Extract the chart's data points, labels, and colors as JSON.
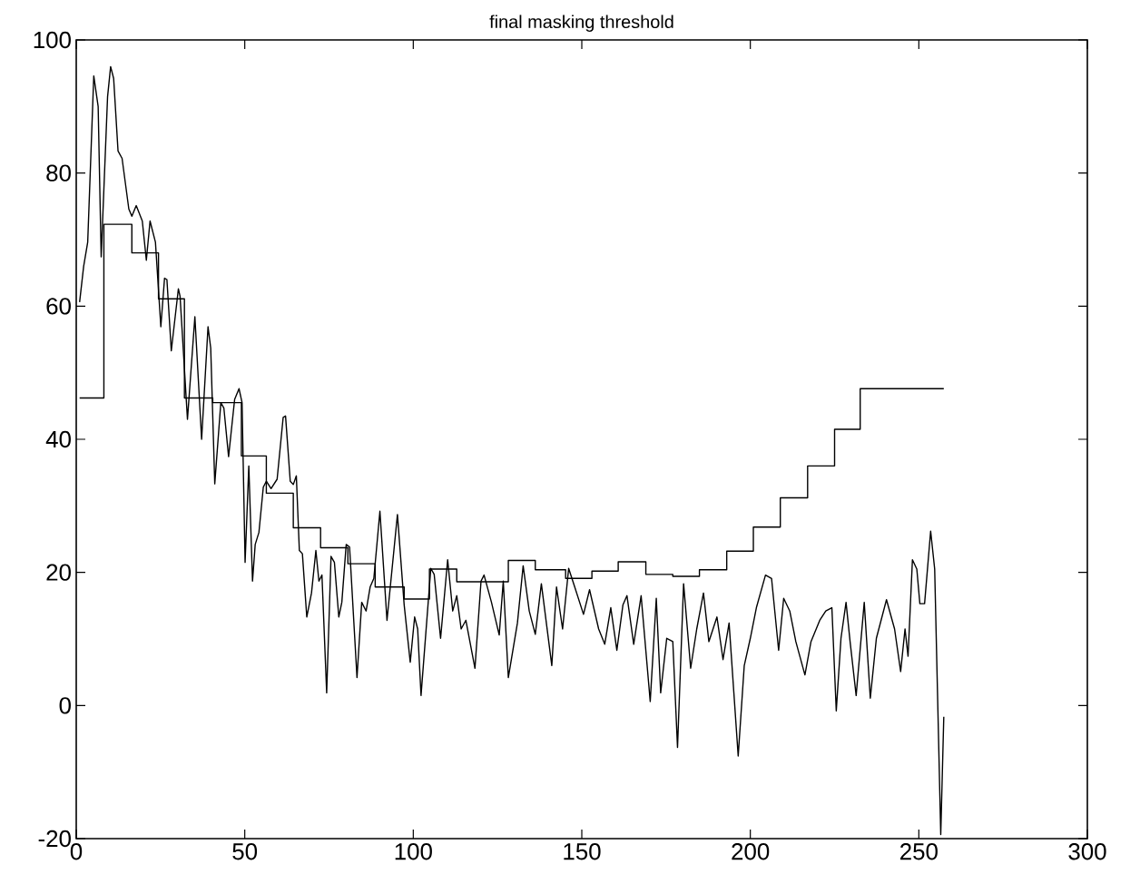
{
  "chart_data": {
    "type": "line",
    "title": "final masking threshold",
    "xlim": [
      0,
      300
    ],
    "xticks": [
      0,
      50,
      100,
      150,
      200,
      250,
      300
    ],
    "ylim": [
      -20,
      100
    ],
    "yticks": [
      -20,
      0,
      20,
      40,
      60,
      80,
      100
    ],
    "grid": false,
    "marker": "none",
    "line_style": "solid",
    "series": [
      {
        "color": "#000000",
        "x": [
          1,
          2.2,
          3.4,
          5.2,
          6.5,
          7.4,
          9.3,
          10.2,
          11.1,
          12.4,
          13.6,
          15.6,
          16.5,
          17.8,
          19.6,
          20.8,
          21.9,
          23.5,
          25.1,
          26.2,
          26.9,
          28.2,
          30.3,
          30.8,
          33,
          35.2,
          37.2,
          39.1,
          39.9,
          41.1,
          42.9,
          43.8,
          45.2,
          47,
          48.3,
          49.2,
          50.1,
          51.2,
          52.3,
          53.1,
          54.2,
          55.5,
          56.4,
          57.8,
          59.6,
          61.4,
          62.1,
          63.5,
          64.4,
          65.3,
          66.2,
          67.1,
          68.4,
          69.8,
          71.1,
          72,
          72.9,
          74.3,
          75.6,
          76.6,
          77.9,
          78.8,
          80.1,
          81.1,
          83.3,
          84.7,
          86,
          87.2,
          88.3,
          90.1,
          92.2,
          95.3,
          97.3,
          99.1,
          100.4,
          101.3,
          102.3,
          105.2,
          106.2,
          108.1,
          110.2,
          111.7,
          112.9,
          114.2,
          115.6,
          118.3,
          120.1,
          121,
          123.2,
          125.5,
          126.7,
          128.2,
          130.9,
          132.6,
          134.4,
          136.2,
          138,
          141.1,
          142.5,
          144.3,
          146.1,
          147.9,
          150.5,
          152.3,
          155,
          156.8,
          158.6,
          160.4,
          162.2,
          163.4,
          165.4,
          167.6,
          170.3,
          172.1,
          173.4,
          175.2,
          177,
          178.4,
          180.2,
          182.3,
          184.1,
          186.1,
          187.7,
          190.1,
          191.9,
          193.7,
          196.4,
          198.2,
          200,
          201.8,
          204.5,
          206.3,
          208.4,
          209.9,
          211.7,
          213.5,
          216.2,
          218,
          220.6,
          222.4,
          224.2,
          225.5,
          226.9,
          228.4,
          229.6,
          231.4,
          233.8,
          235.6,
          237.4,
          240.4,
          242.8,
          244.6,
          245.9,
          246.8,
          248.1,
          249.4,
          250.3,
          251.7,
          253.5,
          254.7,
          256.5,
          257.4
        ],
        "values": [
          60.6,
          66,
          69.6,
          94.6,
          90,
          67.4,
          91.5,
          96,
          94.2,
          83.3,
          82.2,
          74.6,
          73.5,
          75.1,
          72.8,
          66.9,
          72.8,
          69.6,
          56.9,
          64.2,
          64,
          53.3,
          62.6,
          61.5,
          43,
          58.4,
          40,
          56.9,
          53.7,
          33.3,
          45.5,
          44.7,
          37.4,
          46,
          47.6,
          45.5,
          21.5,
          36,
          18.7,
          24.2,
          26,
          32.8,
          33.7,
          32.6,
          34,
          43.3,
          43.5,
          33.7,
          33.2,
          34.5,
          23.3,
          22.8,
          13.3,
          16.9,
          23.3,
          18.7,
          19.6,
          1.9,
          22.4,
          21.5,
          13.3,
          15.5,
          24.2,
          23.8,
          4.2,
          15.5,
          14.2,
          17.8,
          19.1,
          29.2,
          12.8,
          28.7,
          15.1,
          6.5,
          13.3,
          11.5,
          1.5,
          20.6,
          19.7,
          10.1,
          21.9,
          14.2,
          16.5,
          11.5,
          12.8,
          5.6,
          18.7,
          19.6,
          15.5,
          10.6,
          18.7,
          4.2,
          12.4,
          21,
          14.2,
          10.7,
          18.3,
          6,
          17.8,
          11.5,
          20.6,
          17.8,
          13.7,
          17.4,
          11.5,
          9.2,
          14.7,
          8.3,
          15.1,
          16.5,
          9.2,
          16.5,
          0.6,
          16.1,
          1.9,
          10.1,
          9.6,
          -6.3,
          18.3,
          5.6,
          11.5,
          16.9,
          9.6,
          13.3,
          6.9,
          12.4,
          -7.6,
          6,
          10.1,
          14.7,
          19.6,
          19.1,
          8.3,
          16.1,
          14.2,
          9.6,
          4.6,
          9.6,
          12.8,
          14.2,
          14.7,
          -0.8,
          10.1,
          15.5,
          9.6,
          1.5,
          15.5,
          1.1,
          10.1,
          15.9,
          11.5,
          5.1,
          11.5,
          7.4,
          21.9,
          20.5,
          15.3,
          15.3,
          26.2,
          20.5,
          -19.4,
          -1.7
        ]
      },
      {
        "type": "step",
        "color": "#000000",
        "x": [
          1,
          8.2,
          16.5,
          24.4,
          32.1,
          40.5,
          49,
          56.4,
          64.4,
          72.5,
          80.6,
          88.7,
          97.3,
          104.8,
          112.9,
          128.2,
          136.2,
          145.2,
          153,
          160.8,
          169,
          177,
          184.9,
          193,
          200.9,
          208.9,
          217,
          225,
          232.6,
          257.4
        ],
        "values": [
          46.2,
          72.3,
          68,
          61.1,
          46.2,
          45.5,
          37.5,
          31.9,
          26.7,
          23.7,
          21.3,
          17.8,
          16,
          20.5,
          18.6,
          21.8,
          20.4,
          19.1,
          20.2,
          21.6,
          19.7,
          19.4,
          20.4,
          23.2,
          26.8,
          31.2,
          36,
          41.5,
          47.6,
          47.6
        ]
      }
    ]
  }
}
